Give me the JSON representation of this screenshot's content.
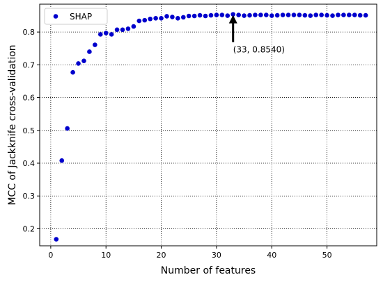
{
  "chart_data": {
    "type": "scatter",
    "xlabel": "Number of features",
    "ylabel": "MCC of Jackknife cross-validation",
    "xlim": [
      -2,
      59
    ],
    "ylim": [
      0.148,
      0.885
    ],
    "xticks": [
      0,
      10,
      20,
      30,
      40,
      50
    ],
    "yticks": [
      0.2,
      0.3,
      0.4,
      0.5,
      0.6,
      0.7,
      0.8
    ],
    "grid": true,
    "grid_style": "dotted",
    "legend_position": "top-left",
    "marker_color": "#0000cc",
    "series": [
      {
        "name": "SHAP",
        "x": [
          1,
          2,
          3,
          4,
          5,
          6,
          7,
          8,
          9,
          10,
          11,
          12,
          13,
          14,
          15,
          16,
          17,
          18,
          19,
          20,
          21,
          22,
          23,
          24,
          25,
          26,
          27,
          28,
          29,
          30,
          31,
          32,
          33,
          34,
          35,
          36,
          37,
          38,
          39,
          40,
          41,
          42,
          43,
          44,
          45,
          46,
          47,
          48,
          49,
          50,
          51,
          52,
          53,
          54,
          55,
          56,
          57
        ],
        "y": [
          0.168,
          0.408,
          0.506,
          0.677,
          0.704,
          0.712,
          0.74,
          0.761,
          0.793,
          0.797,
          0.793,
          0.807,
          0.807,
          0.81,
          0.817,
          0.834,
          0.836,
          0.84,
          0.842,
          0.842,
          0.848,
          0.846,
          0.842,
          0.845,
          0.849,
          0.849,
          0.851,
          0.849,
          0.851,
          0.852,
          0.852,
          0.85,
          0.854,
          0.852,
          0.85,
          0.851,
          0.852,
          0.852,
          0.852,
          0.85,
          0.851,
          0.852,
          0.852,
          0.852,
          0.852,
          0.851,
          0.85,
          0.852,
          0.852,
          0.851,
          0.85,
          0.852,
          0.852,
          0.852,
          0.852,
          0.851,
          0.851
        ]
      }
    ],
    "annotation": {
      "text": "(33, 0.8540)",
      "point": [
        33,
        0.854
      ]
    }
  }
}
